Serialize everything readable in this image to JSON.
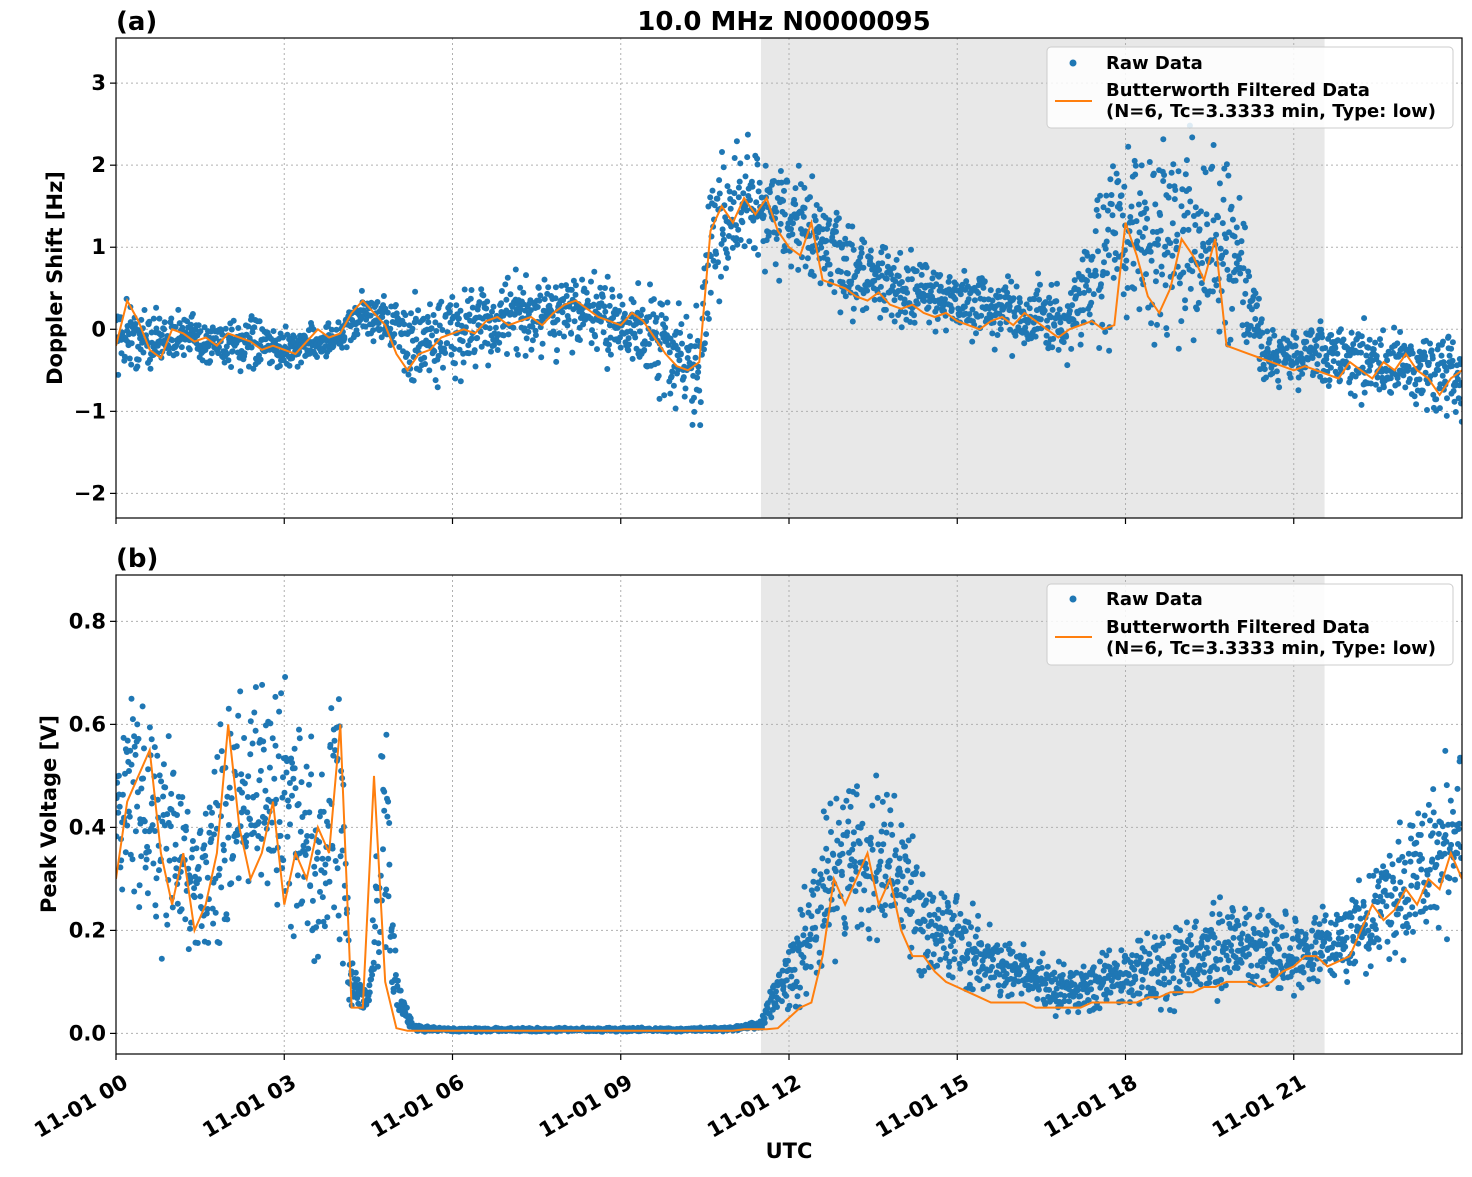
{
  "figure": {
    "title": "10.0 MHz N0000095",
    "xlabel": "UTC",
    "x_tick_labels": [
      "11-01 00",
      "11-01 03",
      "11-01 06",
      "11-01 09",
      "11-01 12",
      "11-01 15",
      "11-01 18",
      "11-01 21"
    ],
    "colors": {
      "raw": "#1f77b4",
      "filtered": "#ff7f0e",
      "shade": "#e8e8e8",
      "grid": "#b0b0b0"
    }
  },
  "legend": {
    "raw_label": "Raw Data",
    "filtered_label_line1": "Butterworth Filtered Data",
    "filtered_label_line2": "(N=6, Tc=3.3333 min, Type: low)"
  },
  "chart_data": [
    {
      "type": "scatter",
      "panel_label": "(a)",
      "ylabel": "Doppler Shift [Hz]",
      "xlabel": "",
      "xlim_hours": [
        0,
        24
      ],
      "ylim": [
        -2.3,
        3.55
      ],
      "y_ticks": [
        -2,
        -1,
        0,
        1,
        2,
        3
      ],
      "y_tick_labels": [
        "−2",
        "−1",
        "0",
        "1",
        "2",
        "3"
      ],
      "shaded_interval_hours": [
        11.5,
        21.55
      ],
      "grid": true,
      "legend_position": "top-right",
      "series": [
        {
          "name": "Butterworth Filtered Data (N=6, Tc=3.3333 min, Type: low)",
          "style": "line",
          "x_hours": [
            0,
            0.2,
            0.4,
            0.6,
            0.8,
            1,
            1.2,
            1.4,
            1.6,
            1.8,
            2,
            2.2,
            2.4,
            2.6,
            2.8,
            3,
            3.2,
            3.4,
            3.6,
            3.8,
            4,
            4.2,
            4.4,
            4.6,
            4.8,
            5,
            5.2,
            5.4,
            5.6,
            5.8,
            6,
            6.2,
            6.4,
            6.6,
            6.8,
            7,
            7.2,
            7.4,
            7.6,
            7.8,
            8,
            8.2,
            8.4,
            8.6,
            8.8,
            9,
            9.2,
            9.4,
            9.6,
            9.8,
            10,
            10.2,
            10.4,
            10.6,
            10.8,
            11,
            11.2,
            11.4,
            11.6,
            11.8,
            12,
            12.2,
            12.4,
            12.6,
            12.8,
            13,
            13.2,
            13.4,
            13.6,
            13.8,
            14,
            14.2,
            14.4,
            14.6,
            14.8,
            15,
            15.2,
            15.4,
            15.6,
            15.8,
            16,
            16.2,
            16.4,
            16.6,
            16.8,
            17,
            17.2,
            17.4,
            17.6,
            17.8,
            18,
            18.2,
            18.4,
            18.6,
            18.8,
            19,
            19.2,
            19.4,
            19.6,
            19.8,
            20,
            20.2,
            20.4,
            20.6,
            20.8,
            21,
            21.2,
            21.4,
            21.6,
            21.8,
            22,
            22.2,
            22.4,
            22.6,
            22.8,
            23,
            23.2,
            23.4,
            23.6,
            23.8,
            24
          ],
          "values": [
            -0.2,
            0.35,
            0.1,
            -0.25,
            -0.35,
            0.0,
            -0.05,
            -0.15,
            -0.1,
            -0.2,
            -0.05,
            -0.1,
            -0.15,
            -0.25,
            -0.2,
            -0.25,
            -0.3,
            -0.15,
            0.0,
            -0.1,
            -0.05,
            0.2,
            0.35,
            0.2,
            0.05,
            -0.3,
            -0.5,
            -0.3,
            -0.25,
            -0.1,
            -0.05,
            0.0,
            -0.05,
            0.1,
            0.15,
            0.05,
            0.1,
            0.15,
            0.05,
            0.2,
            0.3,
            0.35,
            0.25,
            0.15,
            0.1,
            0.05,
            0.2,
            0.1,
            -0.1,
            -0.3,
            -0.45,
            -0.5,
            -0.4,
            1.2,
            1.5,
            1.3,
            1.6,
            1.4,
            1.6,
            1.2,
            1.0,
            0.9,
            1.3,
            0.6,
            0.55,
            0.5,
            0.4,
            0.35,
            0.45,
            0.3,
            0.25,
            0.3,
            0.2,
            0.15,
            0.2,
            0.1,
            0.05,
            0.0,
            0.1,
            0.15,
            0.05,
            0.2,
            0.1,
            0.0,
            -0.1,
            0.0,
            0.05,
            0.1,
            0.0,
            0.05,
            1.3,
            0.9,
            0.4,
            0.2,
            0.5,
            1.1,
            0.9,
            0.6,
            1.1,
            -0.2,
            -0.25,
            -0.3,
            -0.35,
            -0.4,
            -0.45,
            -0.5,
            -0.45,
            -0.5,
            -0.55,
            -0.6,
            -0.4,
            -0.5,
            -0.6,
            -0.4,
            -0.5,
            -0.3,
            -0.5,
            -0.6,
            -0.8,
            -0.6,
            -0.5
          ]
        },
        {
          "name": "Raw Data",
          "style": "points",
          "envelope_x_hours": [
            0,
            0.5,
            1,
            2,
            3,
            4,
            4.4,
            4.9,
            5.3,
            6,
            7,
            8,
            9,
            9.5,
            10,
            10.4,
            10.6,
            11,
            11.5,
            12,
            12.5,
            13,
            14,
            15,
            16,
            17,
            17.8,
            18.5,
            19.5,
            20,
            20.5,
            21,
            22,
            23,
            24
          ],
          "envelope_lower": [
            -0.8,
            -0.6,
            -0.5,
            -0.6,
            -0.6,
            -0.4,
            -0.1,
            -0.4,
            -1.0,
            -0.8,
            -0.6,
            -0.5,
            -0.6,
            -0.9,
            -1.3,
            -1.6,
            0.0,
            0.4,
            0.5,
            0.4,
            0.3,
            0.0,
            -0.1,
            -0.2,
            -0.4,
            -0.5,
            -0.5,
            -0.6,
            -0.5,
            -0.7,
            -0.8,
            -0.8,
            -1.0,
            -1.1,
            -1.2
          ],
          "envelope_upper": [
            0.7,
            0.4,
            0.3,
            0.3,
            0.1,
            0.2,
            0.5,
            0.5,
            0.6,
            0.7,
            0.8,
            0.9,
            0.8,
            0.8,
            0.6,
            0.7,
            2.2,
            2.4,
            2.6,
            2.3,
            2.0,
            1.6,
            1.1,
            0.9,
            0.8,
            0.7,
            2.8,
            2.9,
            2.7,
            2.4,
            0.2,
            0.1,
            0.3,
            0.2,
            0.1
          ]
        }
      ]
    },
    {
      "type": "scatter",
      "panel_label": "(b)",
      "ylabel": "Peak Voltage [V]",
      "xlabel": "UTC",
      "xlim_hours": [
        0,
        24
      ],
      "ylim": [
        -0.04,
        0.89
      ],
      "y_ticks": [
        0.0,
        0.2,
        0.4,
        0.6,
        0.8
      ],
      "y_tick_labels": [
        "0.0",
        "0.2",
        "0.4",
        "0.6",
        "0.8"
      ],
      "shaded_interval_hours": [
        11.5,
        21.55
      ],
      "grid": true,
      "legend_position": "top-right",
      "series": [
        {
          "name": "Butterworth Filtered Data (N=6, Tc=3.3333 min, Type: low)",
          "style": "line",
          "x_hours": [
            0,
            0.2,
            0.4,
            0.6,
            0.8,
            1,
            1.2,
            1.4,
            1.6,
            1.8,
            2,
            2.2,
            2.4,
            2.6,
            2.8,
            3,
            3.2,
            3.4,
            3.6,
            3.8,
            4,
            4.2,
            4.4,
            4.6,
            4.8,
            5,
            5.2,
            5.4,
            5.6,
            5.8,
            6,
            6.2,
            6.4,
            6.6,
            6.8,
            7,
            7.2,
            7.4,
            7.6,
            7.8,
            8,
            8.2,
            8.4,
            8.6,
            8.8,
            9,
            9.2,
            9.4,
            9.6,
            9.8,
            10,
            10.2,
            10.4,
            10.6,
            10.8,
            11,
            11.2,
            11.4,
            11.6,
            11.8,
            12,
            12.2,
            12.4,
            12.6,
            12.8,
            13,
            13.2,
            13.4,
            13.6,
            13.8,
            14,
            14.2,
            14.4,
            14.6,
            14.8,
            15,
            15.2,
            15.4,
            15.6,
            15.8,
            16,
            16.2,
            16.4,
            16.6,
            16.8,
            17,
            17.2,
            17.4,
            17.6,
            17.8,
            18,
            18.2,
            18.4,
            18.6,
            18.8,
            19,
            19.2,
            19.4,
            19.6,
            19.8,
            20,
            20.2,
            20.4,
            20.6,
            20.8,
            21,
            21.2,
            21.4,
            21.6,
            21.8,
            22,
            22.2,
            22.4,
            22.6,
            22.8,
            23,
            23.2,
            23.4,
            23.6,
            23.8,
            24
          ],
          "values": [
            0.3,
            0.45,
            0.5,
            0.55,
            0.35,
            0.25,
            0.35,
            0.2,
            0.25,
            0.35,
            0.6,
            0.4,
            0.3,
            0.35,
            0.45,
            0.25,
            0.35,
            0.3,
            0.4,
            0.35,
            0.6,
            0.05,
            0.05,
            0.5,
            0.1,
            0.01,
            0.005,
            0.005,
            0.005,
            0.005,
            0.005,
            0.005,
            0.005,
            0.005,
            0.005,
            0.005,
            0.005,
            0.005,
            0.005,
            0.005,
            0.005,
            0.005,
            0.005,
            0.005,
            0.005,
            0.005,
            0.005,
            0.005,
            0.005,
            0.005,
            0.005,
            0.005,
            0.005,
            0.005,
            0.005,
            0.005,
            0.008,
            0.008,
            0.008,
            0.01,
            0.03,
            0.05,
            0.06,
            0.15,
            0.3,
            0.25,
            0.3,
            0.35,
            0.25,
            0.3,
            0.2,
            0.15,
            0.15,
            0.12,
            0.1,
            0.09,
            0.08,
            0.07,
            0.06,
            0.06,
            0.06,
            0.06,
            0.05,
            0.05,
            0.05,
            0.05,
            0.05,
            0.06,
            0.06,
            0.06,
            0.06,
            0.06,
            0.07,
            0.07,
            0.08,
            0.08,
            0.08,
            0.09,
            0.09,
            0.1,
            0.1,
            0.1,
            0.09,
            0.1,
            0.12,
            0.13,
            0.15,
            0.15,
            0.13,
            0.14,
            0.15,
            0.2,
            0.25,
            0.22,
            0.24,
            0.28,
            0.25,
            0.3,
            0.28,
            0.35,
            0.3
          ]
        },
        {
          "name": "Raw Data",
          "style": "points",
          "envelope_x_hours": [
            0,
            0.5,
            1,
            1.5,
            2,
            2.5,
            3,
            3.5,
            4,
            4.2,
            4.5,
            4.8,
            5,
            5.3,
            6,
            8,
            10,
            11,
            11.5,
            11.8,
            12,
            12.5,
            12.7,
            13,
            13.5,
            14,
            14.5,
            15,
            16,
            17,
            18,
            19,
            20,
            21,
            22,
            23,
            24
          ],
          "envelope_lower": [
            0.18,
            0.15,
            0.12,
            0.08,
            0.1,
            0.12,
            0.1,
            0.08,
            0.05,
            0.02,
            0.02,
            0.05,
            0.01,
            0.002,
            0.002,
            0.002,
            0.002,
            0.003,
            0.005,
            0.01,
            0.02,
            0.04,
            0.1,
            0.12,
            0.12,
            0.1,
            0.08,
            0.05,
            0.03,
            0.02,
            0.02,
            0.03,
            0.04,
            0.05,
            0.08,
            0.1,
            0.12
          ],
          "envelope_upper": [
            0.7,
            0.8,
            0.6,
            0.5,
            0.8,
            0.75,
            0.8,
            0.6,
            0.8,
            0.15,
            0.1,
            0.8,
            0.15,
            0.02,
            0.012,
            0.012,
            0.012,
            0.015,
            0.03,
            0.15,
            0.2,
            0.4,
            0.55,
            0.6,
            0.55,
            0.5,
            0.35,
            0.3,
            0.2,
            0.15,
            0.2,
            0.25,
            0.3,
            0.25,
            0.3,
            0.45,
            0.7
          ]
        }
      ]
    }
  ]
}
